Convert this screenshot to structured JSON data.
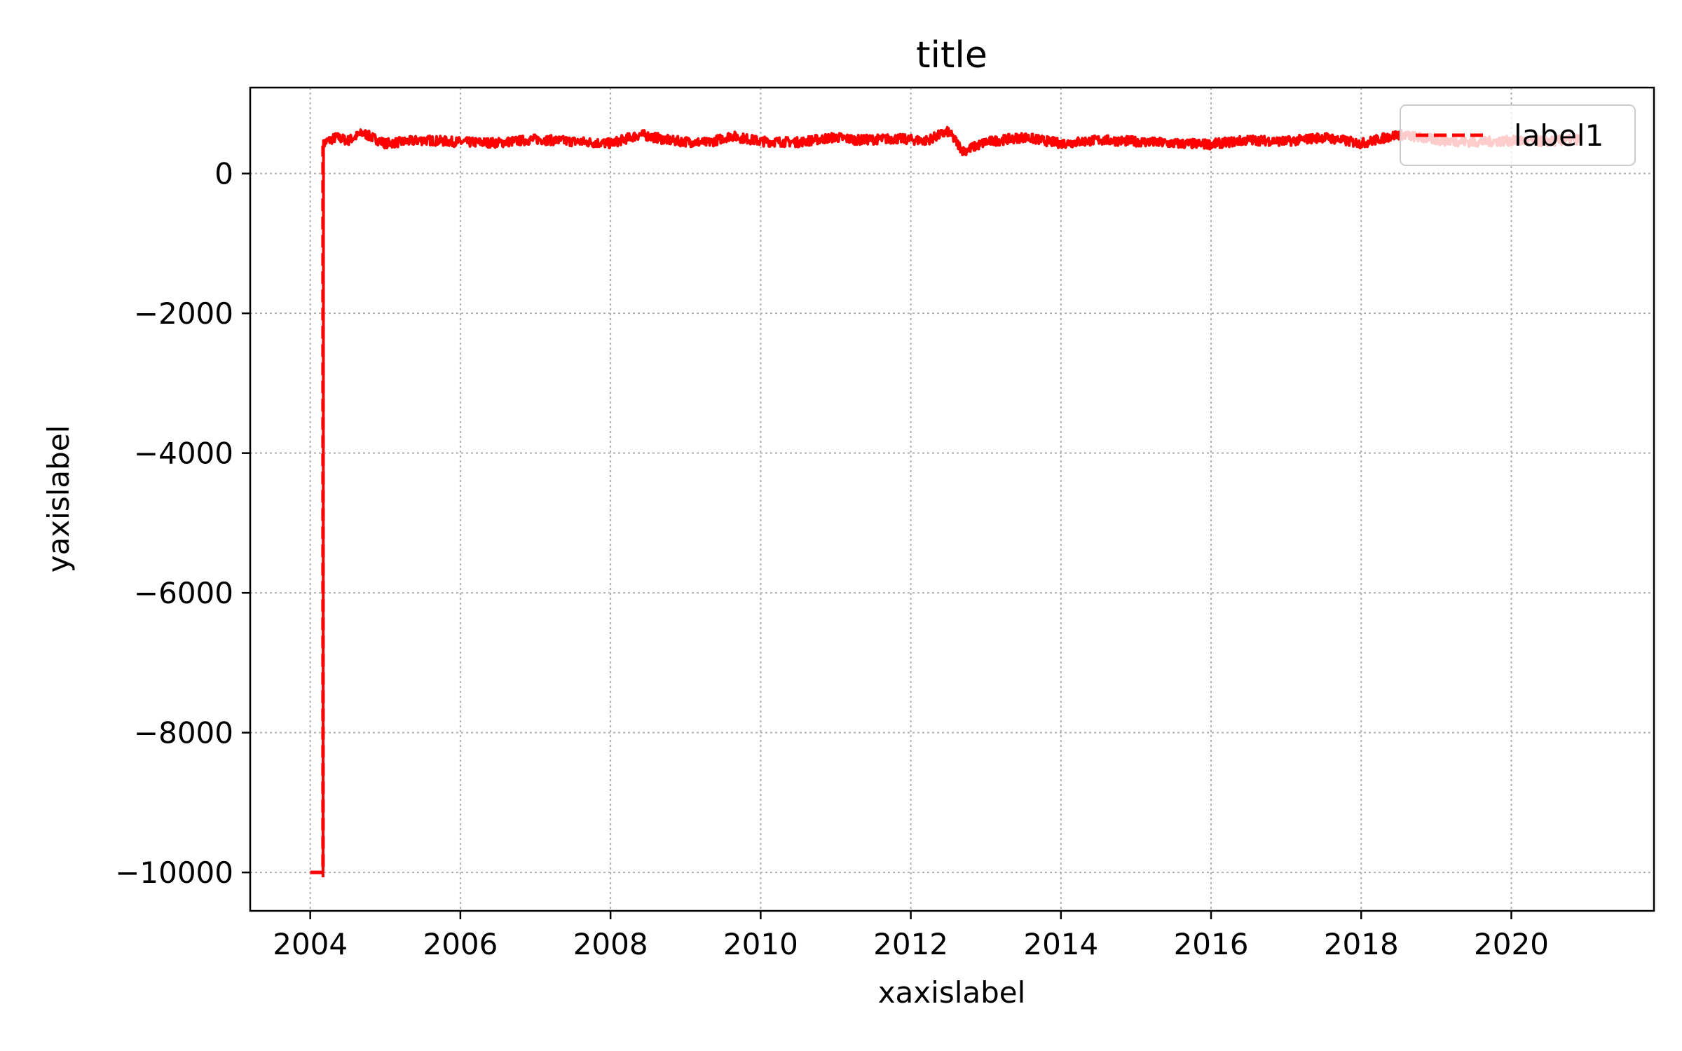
{
  "chart_data": {
    "type": "line",
    "title": "title",
    "xlabel": "xaxislabel",
    "ylabel": "yaxislabel",
    "xlim": [
      2003.2,
      2021.9
    ],
    "ylim": [
      -10550,
      1230
    ],
    "xticks": [
      2004,
      2006,
      2008,
      2010,
      2012,
      2014,
      2016,
      2018,
      2020
    ],
    "yticks": [
      0,
      -2000,
      -4000,
      -6000,
      -8000,
      -10000
    ],
    "ytick_labels": [
      "0",
      "−2000",
      "−4000",
      "−6000",
      "−8000",
      "−10000"
    ],
    "grid": true,
    "legend": {
      "position": "top-right",
      "entries": [
        "label1"
      ]
    },
    "series": [
      {
        "name": "label1",
        "color": "#ff0000",
        "style": "dashed",
        "x": [
          2004.0,
          2004.17,
          2004.17,
          2004.2,
          2004.35,
          2004.5,
          2004.7,
          2005.0,
          2005.5,
          2006.0,
          2006.5,
          2007.0,
          2007.5,
          2008.0,
          2008.4,
          2008.8,
          2009.3,
          2009.6,
          2010.0,
          2010.5,
          2011.0,
          2011.3,
          2011.8,
          2012.2,
          2012.5,
          2012.7,
          2013.0,
          2013.5,
          2014.0,
          2014.5,
          2015.0,
          2015.5,
          2016.0,
          2016.5,
          2017.0,
          2017.5,
          2018.0,
          2018.5,
          2019.0,
          2019.5,
          2020.0,
          2020.5,
          2020.9
        ],
        "y": [
          -10000,
          -10000,
          400,
          450,
          520,
          470,
          580,
          430,
          480,
          450,
          440,
          490,
          460,
          430,
          560,
          470,
          440,
          540,
          460,
          450,
          520,
          480,
          500,
          470,
          600,
          320,
          450,
          520,
          430,
          480,
          460,
          430,
          420,
          480,
          460,
          520,
          430,
          560,
          480,
          450,
          470,
          460,
          490
        ]
      }
    ]
  }
}
